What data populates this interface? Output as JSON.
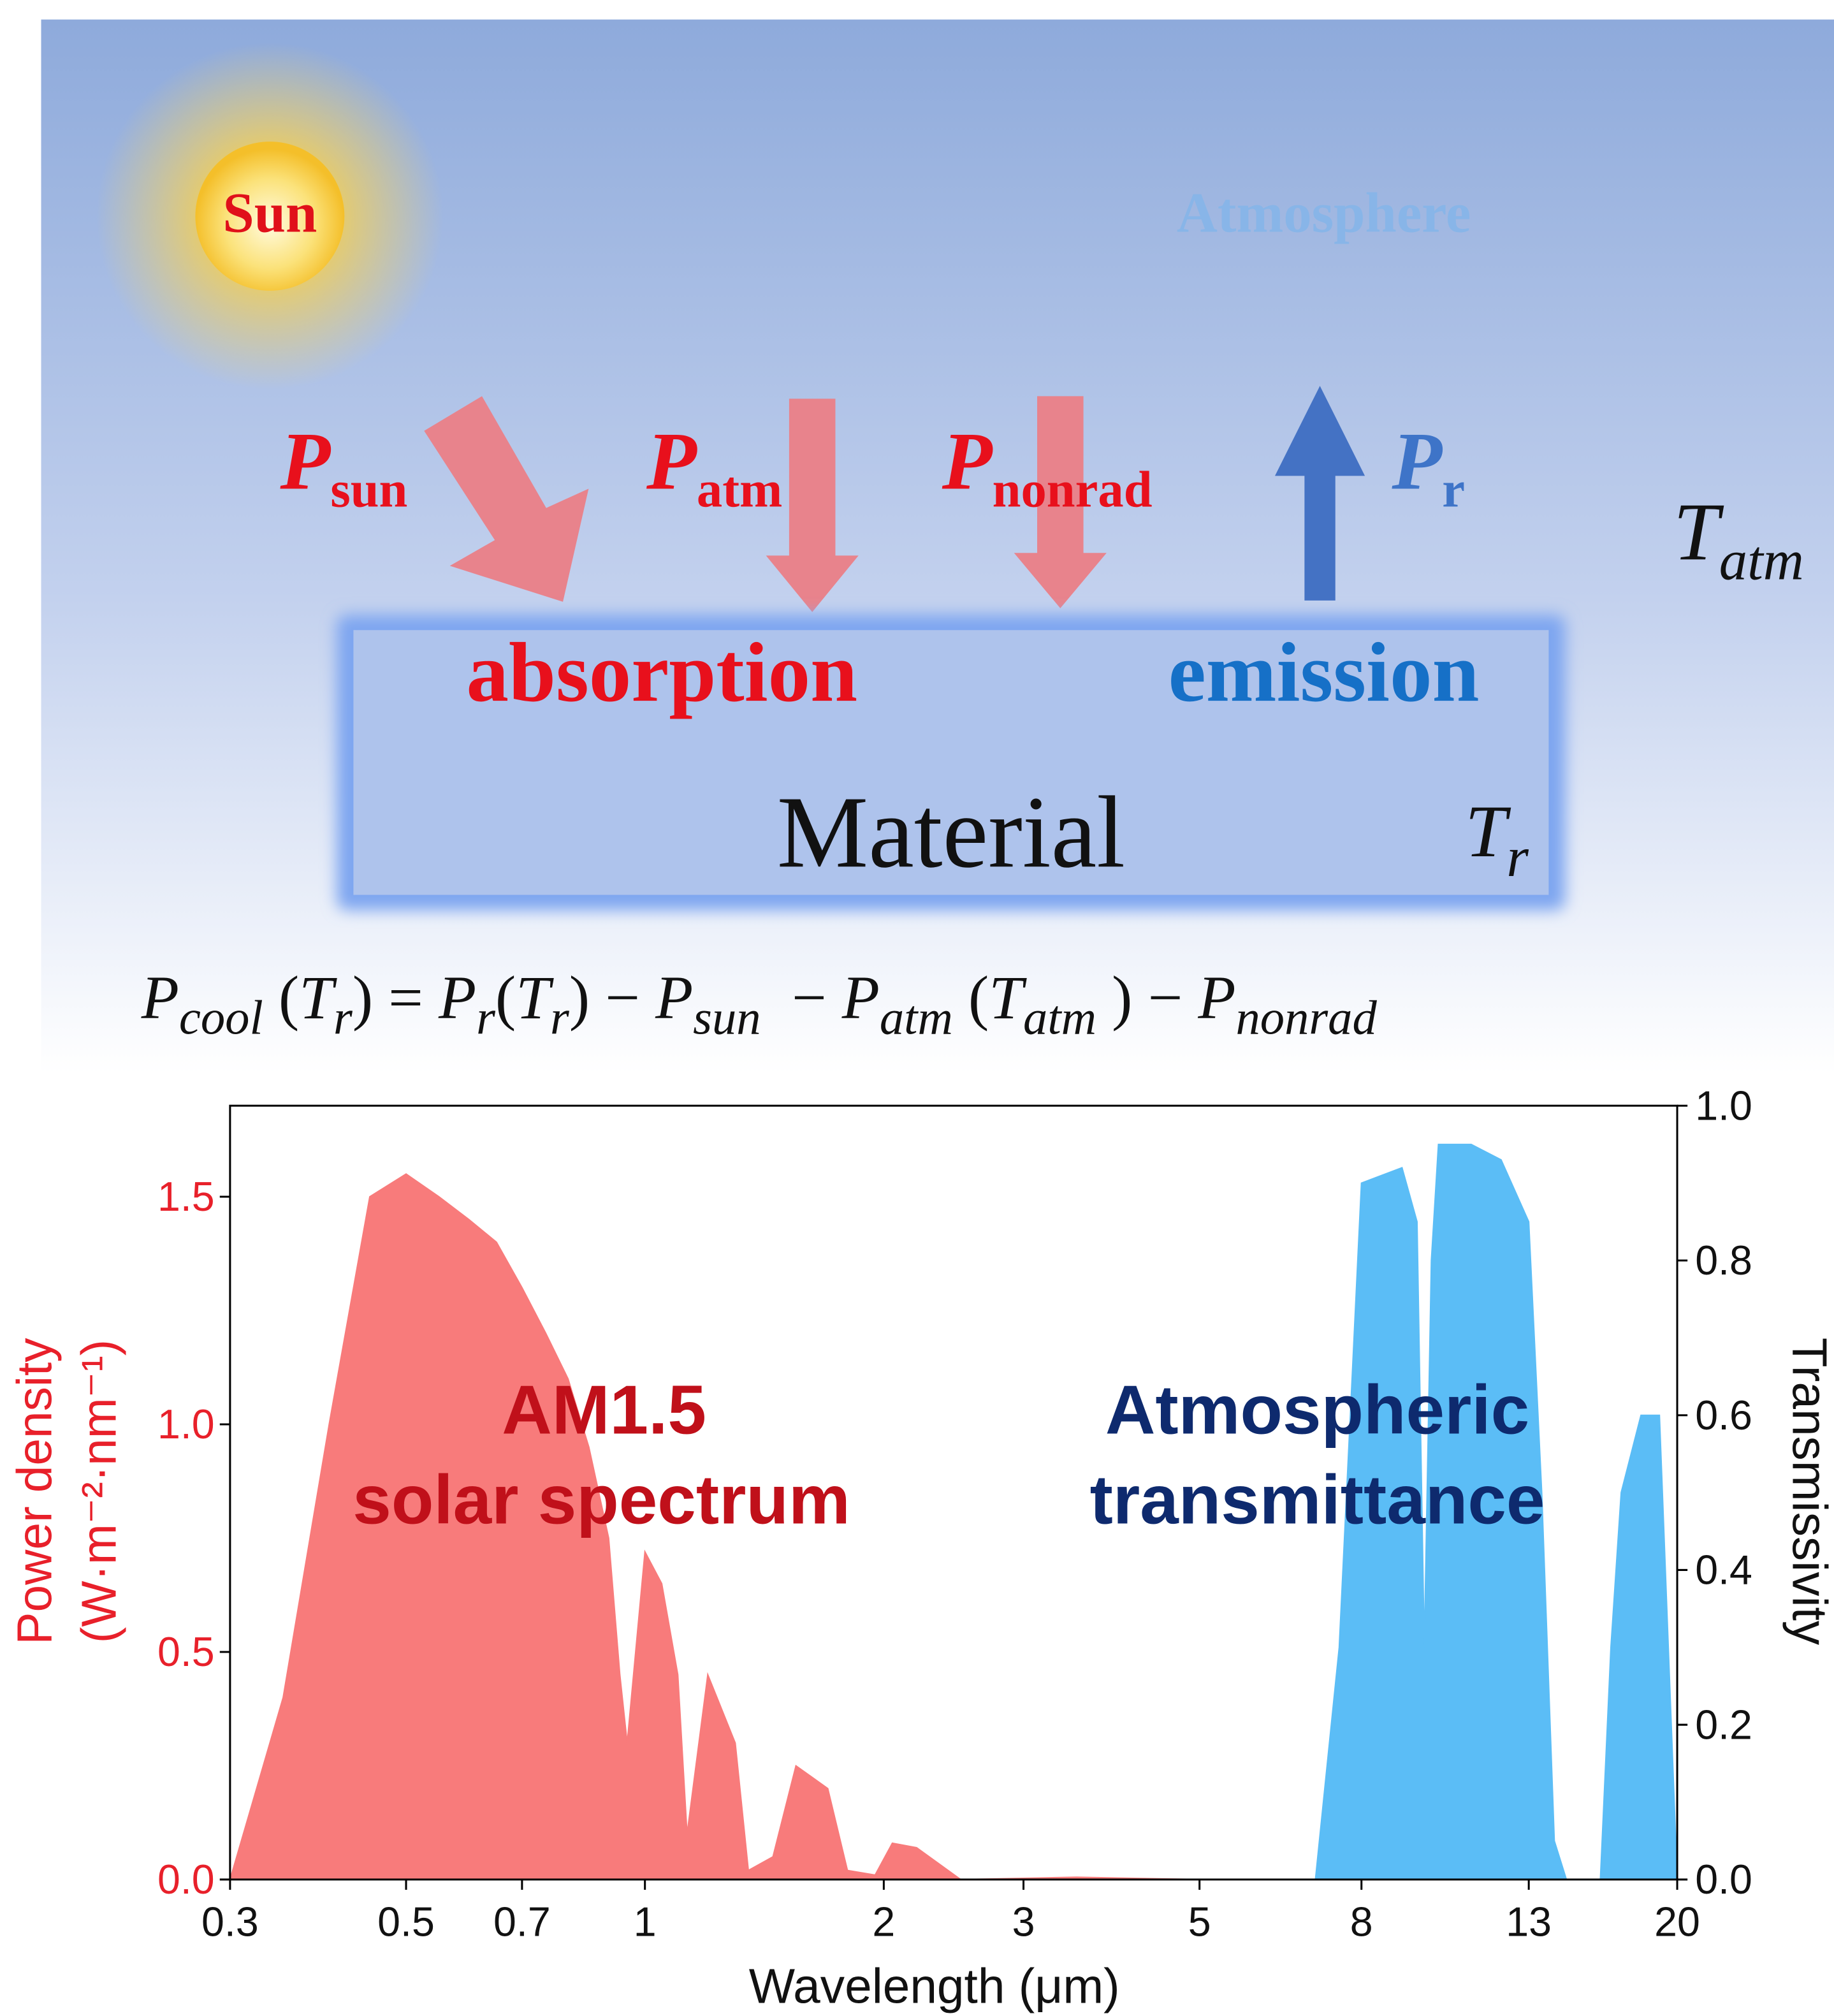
{
  "diagram": {
    "sun": "Sun",
    "atmosphere": "Atmosphere",
    "fluxes": [
      {
        "symbol": "P",
        "subscript": "sun"
      },
      {
        "symbol": "P",
        "subscript": "atm"
      },
      {
        "symbol": "P",
        "subscript": "nonrad"
      },
      {
        "symbol": "P",
        "subscript": "r"
      }
    ],
    "t_atm": {
      "symbol": "T",
      "subscript": "atm"
    },
    "absorption": "absorption",
    "emission": "emission",
    "material": "Material",
    "t_r": {
      "symbol": "T",
      "subscript": "r"
    },
    "equation": [
      {
        "base": "P",
        "sub": "cool"
      },
      " (",
      {
        "base": "T",
        "sub": "r"
      },
      ") = ",
      {
        "base": "P",
        "sub": "r"
      },
      "(",
      {
        "base": "T",
        "sub": "r"
      },
      ") − ",
      {
        "base": "P",
        "sub": "sun"
      },
      "  − ",
      {
        "base": "P",
        "sub": "atm"
      },
      " (",
      {
        "base": "T",
        "sub": "atm"
      },
      " ) − ",
      {
        "base": "P",
        "sub": "nonrad"
      }
    ]
  },
  "chart_data": {
    "type": "area",
    "xscale": "log",
    "xlabel": "Wavelength (μm)",
    "ylabel": [
      "Power density",
      "(W·m⁻²·nm⁻¹)"
    ],
    "y2label": "Transmissivity",
    "xlim": [
      0.3,
      20
    ],
    "xticks": [
      0.3,
      0.5,
      0.7,
      1,
      2,
      3,
      5,
      8,
      13,
      20
    ],
    "ylim": [
      0,
      1.7
    ],
    "yticks": [
      {
        "value": 0,
        "label": "0.0"
      },
      0.5,
      {
        "value": 1,
        "label": "1.0"
      },
      1.5
    ],
    "y2lim": [
      0,
      1
    ],
    "y2ticks": [
      {
        "value": 0,
        "label": "0.0"
      },
      0.2,
      0.4,
      0.6,
      0.8,
      {
        "value": 1,
        "label": "1.0"
      }
    ],
    "annotations": [
      "AM1.5",
      "solar spectrum",
      "Atmospheric",
      "transmittance"
    ],
    "series": [
      {
        "color": "#f87b7b",
        "x": [
          0.3,
          0.35,
          0.4,
          0.45,
          0.5,
          0.55,
          0.6,
          0.65,
          0.7,
          0.75,
          0.8,
          0.85,
          0.9,
          0.93,
          0.95,
          1.0,
          1.05,
          1.1,
          1.13,
          1.2,
          1.3,
          1.35,
          1.45,
          1.55,
          1.7,
          1.8,
          1.95,
          2.05,
          2.2,
          2.5,
          3.5,
          5
        ],
        "values": [
          0,
          0.4,
          1.0,
          1.5,
          1.55,
          1.5,
          1.45,
          1.4,
          1.3,
          1.2,
          1.1,
          0.95,
          0.75,
          0.45,
          0.3,
          0.72,
          0.65,
          0.45,
          0.1,
          0.45,
          0.3,
          0.02,
          0.05,
          0.25,
          0.2,
          0.02,
          0.01,
          0.08,
          0.07,
          0,
          0.005,
          0
        ]
      },
      {
        "color": "#5bbdf6",
        "axis": "y2",
        "x": [
          7,
          7.5,
          8,
          9,
          9.4,
          9.6,
          9.8,
          10,
          11,
          12,
          13,
          13.5,
          14,
          14.5,
          16,
          16.5,
          17,
          18,
          19,
          20
        ],
        "values": [
          0,
          0.3,
          0.9,
          0.92,
          0.85,
          0.3,
          0.8,
          0.95,
          0.95,
          0.93,
          0.85,
          0.5,
          0.05,
          0,
          0,
          0.3,
          0.5,
          0.6,
          0.6,
          0
        ]
      }
    ]
  }
}
